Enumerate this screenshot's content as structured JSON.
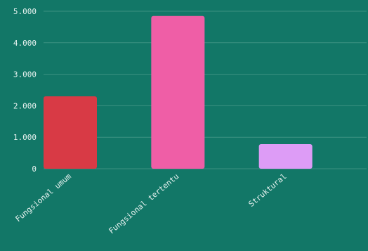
{
  "chart_data": {
    "type": "bar",
    "categories": [
      "Fungsional umum",
      "Fungsional tertentu",
      "Struktural"
    ],
    "values": [
      2300,
      4850,
      780
    ],
    "colors": [
      "#d83a45",
      "#ef5ea6",
      "#dd9cf6"
    ],
    "ylim": [
      0,
      5000
    ],
    "yticks": [
      0,
      1000,
      2000,
      3000,
      4000,
      5000
    ],
    "ytick_labels": [
      "0",
      "1.000",
      "2.000",
      "3.000",
      "4.000",
      "5.000"
    ],
    "grid": true,
    "background": "#127767",
    "title": "",
    "xlabel": "",
    "ylabel": ""
  }
}
